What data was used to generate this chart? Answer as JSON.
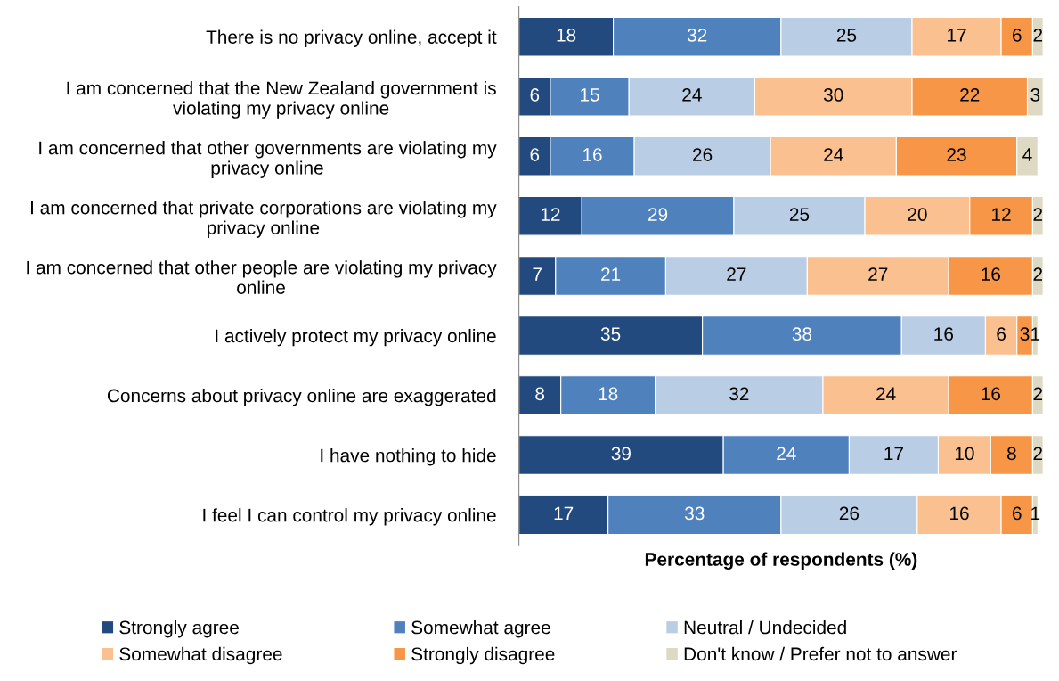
{
  "chart_data": {
    "type": "bar",
    "orientation": "horizontal",
    "stacked": true,
    "data_labels": true,
    "xlabel": "Percentage of respondents (%)",
    "xlim": [
      0,
      100
    ],
    "tick_labels": "y",
    "legend": "bottom",
    "grid": false,
    "categories": [
      "There is no privacy online, accept it",
      "I am concerned that the New Zealand government is violating my privacy online",
      "I am concerned that other governments are violating my privacy online",
      "I am concerned that private corporations are violating my privacy online",
      "I am concerned that other people are violating my privacy online",
      "I actively protect my privacy online",
      "Concerns about privacy online are exaggerated",
      "I have nothing to hide",
      "I feel I can control my privacy online"
    ],
    "series": [
      {
        "name": "Strongly agree",
        "color": "#234a7e",
        "values": [
          18,
          6,
          6,
          12,
          7,
          35,
          8,
          39,
          17
        ]
      },
      {
        "name": "Somewhat agree",
        "color": "#4f81bd",
        "values": [
          32,
          15,
          16,
          29,
          21,
          38,
          18,
          24,
          33
        ]
      },
      {
        "name": "Neutral / Undecided",
        "color": "#b9cde5",
        "values": [
          25,
          24,
          26,
          25,
          27,
          16,
          32,
          17,
          26
        ]
      },
      {
        "name": "Somewhat disagree",
        "color": "#fac090",
        "values": [
          17,
          30,
          24,
          20,
          27,
          6,
          24,
          10,
          16
        ]
      },
      {
        "name": "Strongly disagree",
        "color": "#f79646",
        "values": [
          6,
          22,
          23,
          12,
          16,
          3,
          16,
          8,
          6
        ]
      },
      {
        "name": "Don't know / Prefer not to answer",
        "color": "#ddd9c3",
        "values": [
          2,
          3,
          4,
          2,
          2,
          1,
          2,
          2,
          1
        ]
      }
    ]
  }
}
